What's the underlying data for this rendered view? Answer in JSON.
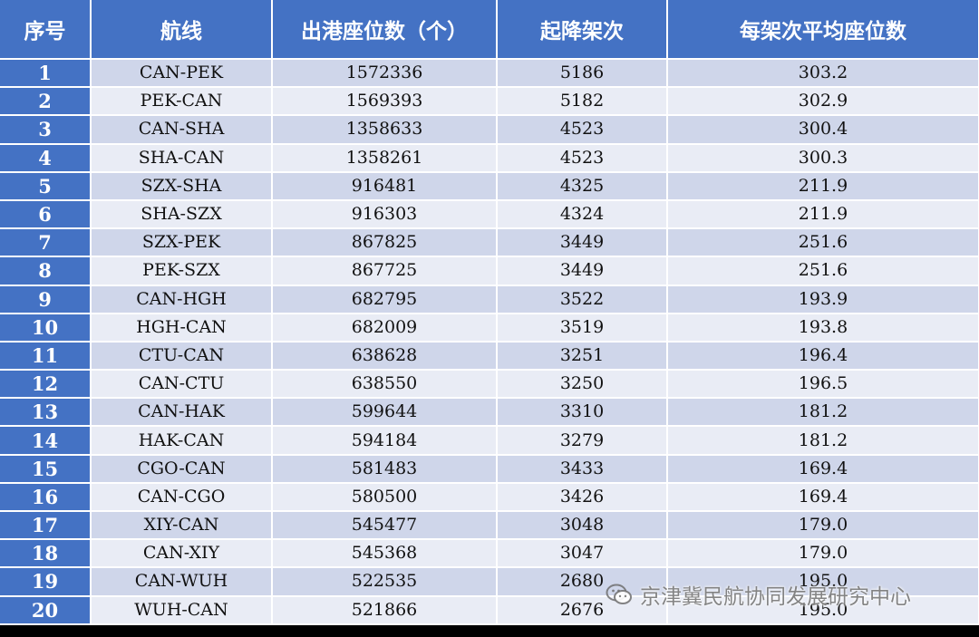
{
  "table": {
    "headers": [
      "序号",
      "航线",
      "出港座位数（个）",
      "起降架次",
      "每架次平均座位数"
    ],
    "rows": [
      {
        "no": "1",
        "route": "CAN-PEK",
        "seats": "1572336",
        "flights": "5186",
        "avg": "303.2"
      },
      {
        "no": "2",
        "route": "PEK-CAN",
        "seats": "1569393",
        "flights": "5182",
        "avg": "302.9"
      },
      {
        "no": "3",
        "route": "CAN-SHA",
        "seats": "1358633",
        "flights": "4523",
        "avg": "300.4"
      },
      {
        "no": "4",
        "route": "SHA-CAN",
        "seats": "1358261",
        "flights": "4523",
        "avg": "300.3"
      },
      {
        "no": "5",
        "route": "SZX-SHA",
        "seats": "916481",
        "flights": "4325",
        "avg": "211.9"
      },
      {
        "no": "6",
        "route": "SHA-SZX",
        "seats": "916303",
        "flights": "4324",
        "avg": "211.9"
      },
      {
        "no": "7",
        "route": "SZX-PEK",
        "seats": "867825",
        "flights": "3449",
        "avg": "251.6"
      },
      {
        "no": "8",
        "route": "PEK-SZX",
        "seats": "867725",
        "flights": "3449",
        "avg": "251.6"
      },
      {
        "no": "9",
        "route": "CAN-HGH",
        "seats": "682795",
        "flights": "3522",
        "avg": "193.9"
      },
      {
        "no": "10",
        "route": "HGH-CAN",
        "seats": "682009",
        "flights": "3519",
        "avg": "193.8"
      },
      {
        "no": "11",
        "route": "CTU-CAN",
        "seats": "638628",
        "flights": "3251",
        "avg": "196.4"
      },
      {
        "no": "12",
        "route": "CAN-CTU",
        "seats": "638550",
        "flights": "3250",
        "avg": "196.5"
      },
      {
        "no": "13",
        "route": "CAN-HAK",
        "seats": "599644",
        "flights": "3310",
        "avg": "181.2"
      },
      {
        "no": "14",
        "route": "HAK-CAN",
        "seats": "594184",
        "flights": "3279",
        "avg": "181.2"
      },
      {
        "no": "15",
        "route": "CGO-CAN",
        "seats": "581483",
        "flights": "3433",
        "avg": "169.4"
      },
      {
        "no": "16",
        "route": "CAN-CGO",
        "seats": "580500",
        "flights": "3426",
        "avg": "169.4"
      },
      {
        "no": "17",
        "route": "XIY-CAN",
        "seats": "545477",
        "flights": "3048",
        "avg": "179.0"
      },
      {
        "no": "18",
        "route": "CAN-XIY",
        "seats": "545368",
        "flights": "3047",
        "avg": "179.0"
      },
      {
        "no": "19",
        "route": "CAN-WUH",
        "seats": "522535",
        "flights": "2680",
        "avg": "195.0"
      },
      {
        "no": "20",
        "route": "WUH-CAN",
        "seats": "521866",
        "flights": "2676",
        "avg": "195.0"
      }
    ]
  },
  "watermark": {
    "text": "京津冀民航协同发展研究中心",
    "icon": "wechat-icon"
  },
  "colors": {
    "header_bg": "#4472c4",
    "row_odd": "#cfd6ea",
    "row_even": "#e9ecf5"
  }
}
